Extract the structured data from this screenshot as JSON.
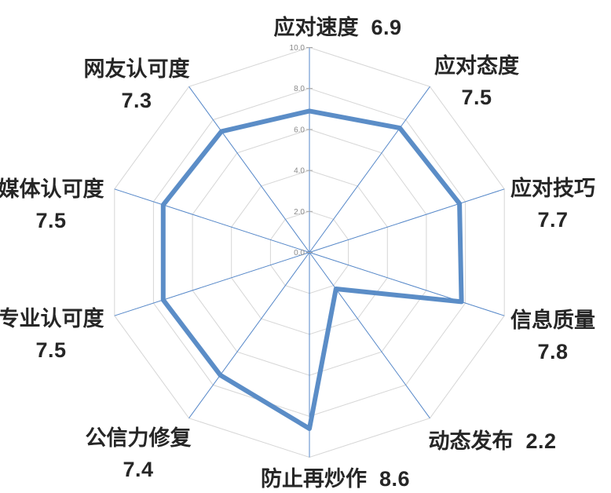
{
  "chart_data": {
    "type": "radar",
    "title": "",
    "categories": [
      "应对速度",
      "应对态度",
      "应对技巧",
      "信息质量",
      "动态发布",
      "防止再炒作",
      "公信力修复",
      "专业认可度",
      "媒体认可度",
      "网友认可度"
    ],
    "values": [
      6.9,
      7.5,
      7.7,
      7.8,
      2.2,
      8.6,
      7.4,
      7.5,
      7.5,
      7.3
    ],
    "axis": {
      "min": 0,
      "max": 10,
      "step": 2,
      "tick_labels": [
        "10.0",
        "8.0",
        "6.0",
        "4.0",
        "2.0",
        "0.0"
      ]
    },
    "grid": true,
    "legend": "none",
    "layout": {
      "start_angle": "top",
      "direction": "clockwise",
      "label_styles": [
        "inline",
        "stacked",
        "stacked",
        "stacked",
        "inline",
        "inline",
        "stacked",
        "stacked",
        "stacked",
        "stacked"
      ]
    },
    "colors": {
      "series": "#5b8dc7",
      "spokes": "#5587c8",
      "gridlines": "#d6d6d6",
      "tick_marks": "#a6a6a6",
      "tick_text": "#8a8a8a",
      "label_text": "#262626",
      "background": "#ffffff"
    }
  }
}
